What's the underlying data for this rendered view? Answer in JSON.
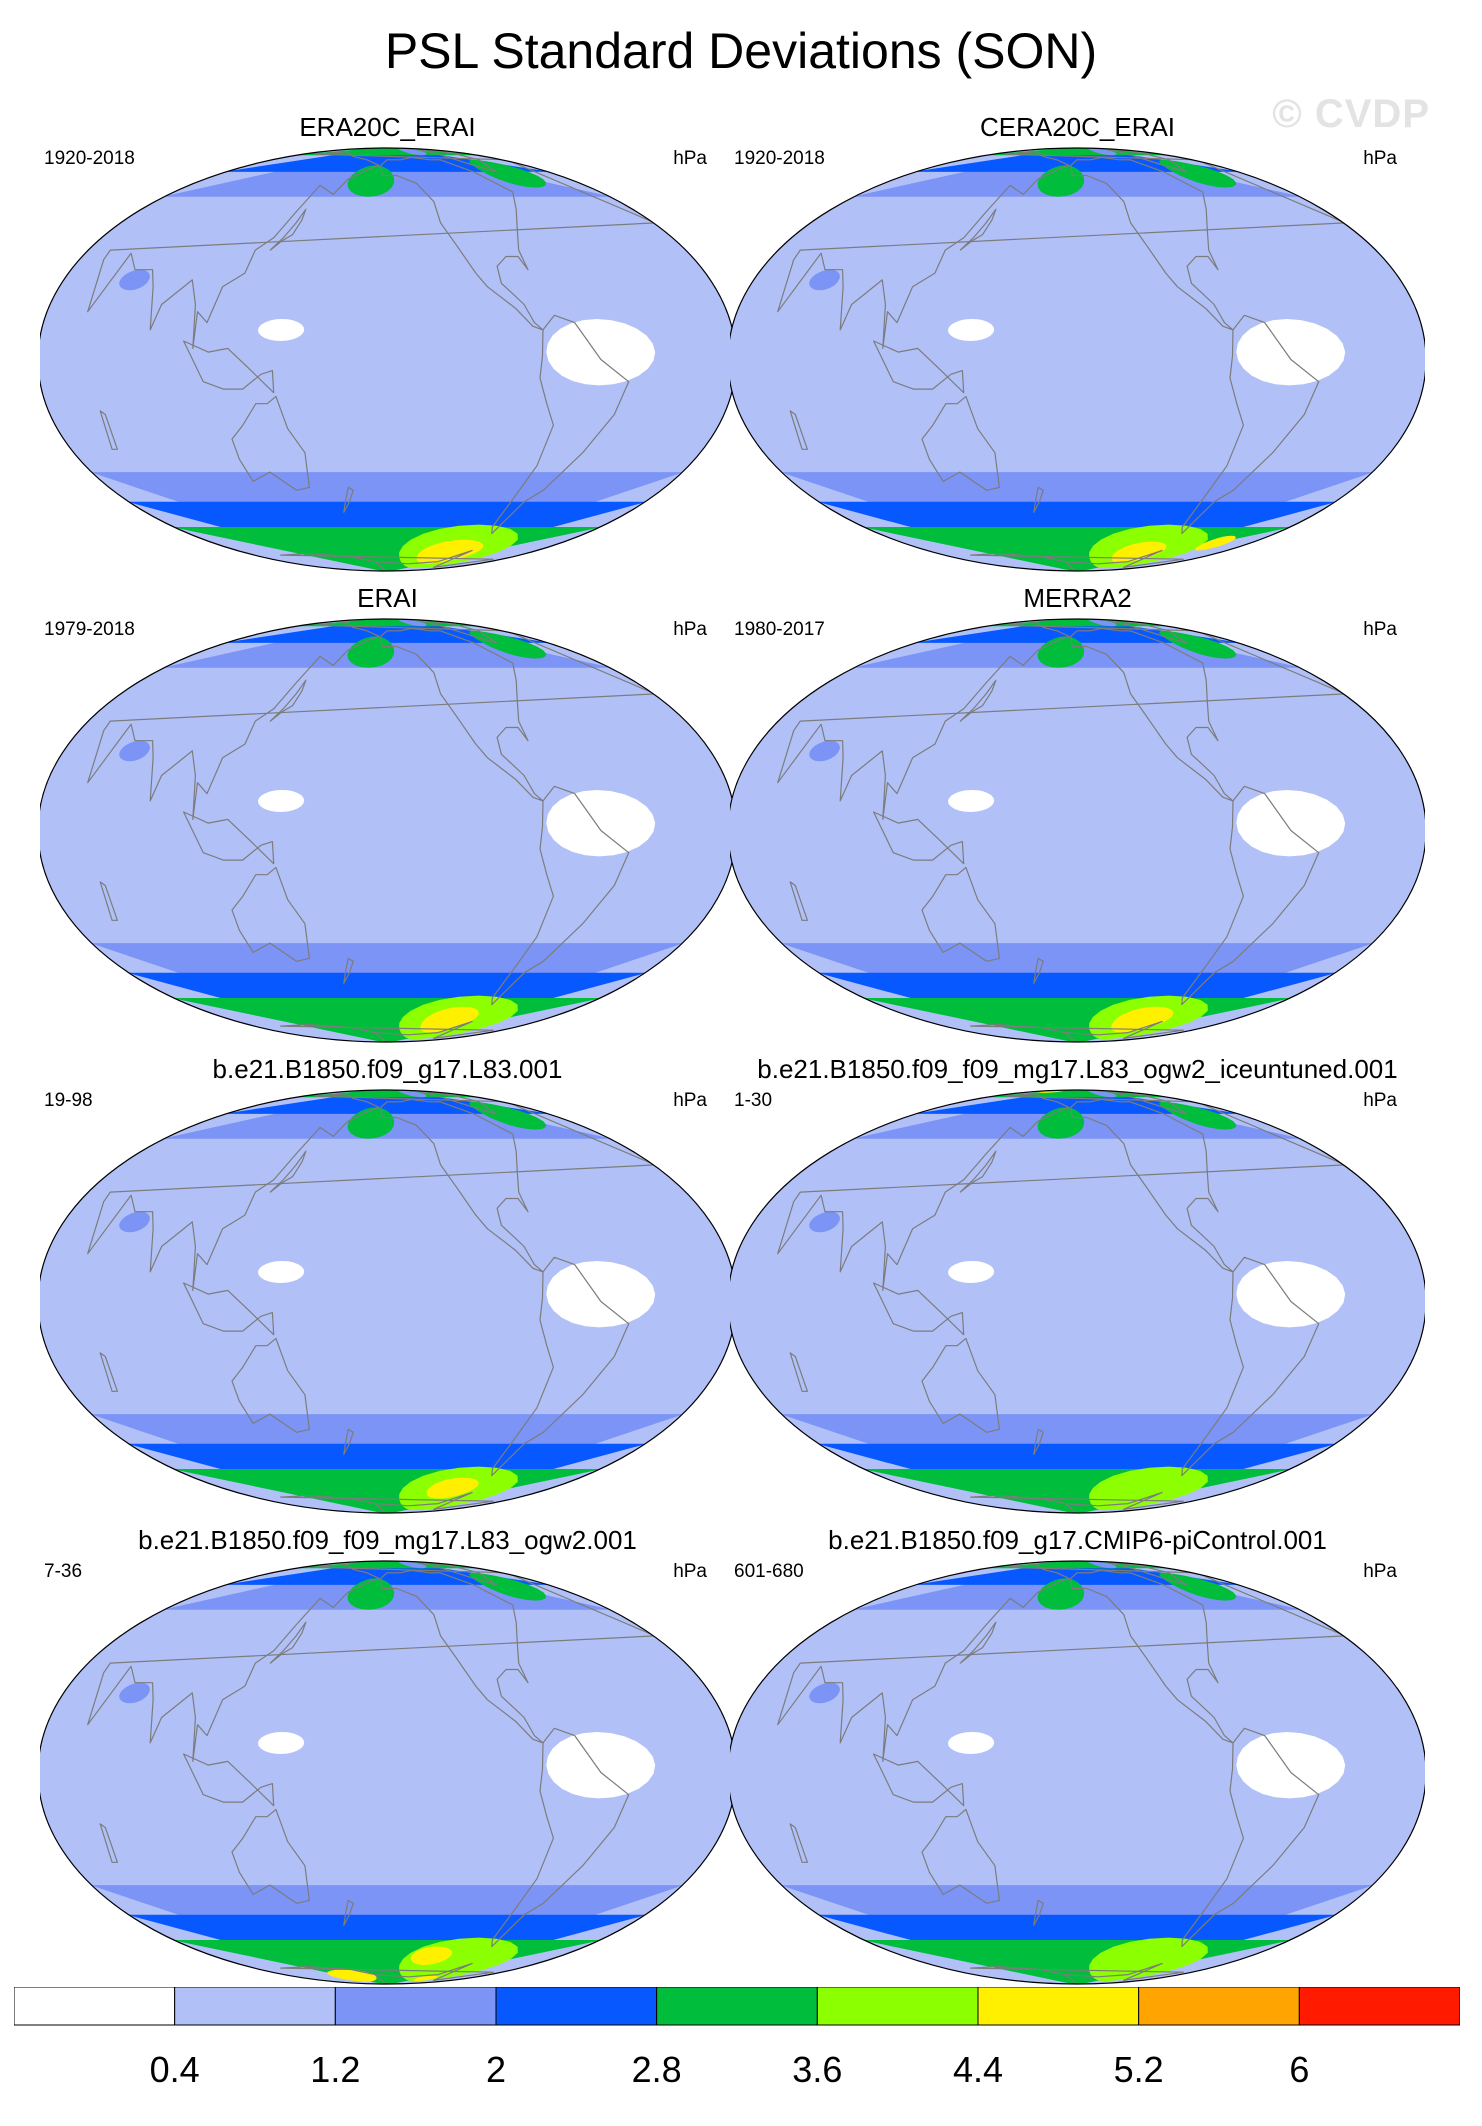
{
  "title": "PSL Standard Deviations (SON)",
  "watermark": "© CVDP",
  "units": "hPa",
  "panels": [
    {
      "title": "ERA20C_ERAI",
      "period": "1920-2018",
      "blobs": [
        {
          "color": "#ffa400",
          "lon": -80,
          "lat": -64,
          "rx": 18,
          "ry": 4
        },
        {
          "color": "#fff000",
          "lon": -85,
          "lat": -66,
          "rx": 35,
          "ry": 8
        }
      ]
    },
    {
      "title": "CERA20C_ERAI",
      "period": "1920-2018",
      "blobs": [
        {
          "color": "#ffa400",
          "lon": -82,
          "lat": -67,
          "rx": 12,
          "ry": 3
        },
        {
          "color": "#fff000",
          "lon": -85,
          "lat": -66,
          "rx": 28,
          "ry": 7
        },
        {
          "color": "#fff000",
          "lon": -18,
          "lat": -60,
          "rx": 12,
          "ry": 4
        }
      ]
    },
    {
      "title": "ERAI",
      "period": "1979-2018",
      "blobs": [
        {
          "color": "#fff000",
          "lon": -90,
          "lat": -64,
          "rx": 28,
          "ry": 8
        }
      ]
    },
    {
      "title": "MERRA2",
      "period": "1980-2017",
      "blobs": [
        {
          "color": "#ffa400",
          "lon": -85,
          "lat": -64,
          "rx": 10,
          "ry": 3
        },
        {
          "color": "#fff000",
          "lon": -87,
          "lat": -64,
          "rx": 30,
          "ry": 8
        }
      ]
    },
    {
      "title": "b.e21.B1850.f09_g17.L83.001",
      "period": "19-98",
      "blobs": [
        {
          "color": "#fff000",
          "lon": -90,
          "lat": -62,
          "rx": 25,
          "ry": 6
        }
      ]
    },
    {
      "title": "b.e21.B1850.f09_f09_mg17.L83_ogw2_iceuntuned.001",
      "period": "1-30",
      "blobs": [
        {
          "color": "#ffa400",
          "lon": 110,
          "lat": 84,
          "rx": 22,
          "ry": 2
        },
        {
          "color": "#fff000",
          "lon": 110,
          "lat": 83,
          "rx": 38,
          "ry": 4
        }
      ]
    },
    {
      "title": "b.e21.B1850.f09_f09_mg17.L83_ogw2.001",
      "period": "7-36",
      "blobs": [
        {
          "color": "#fff000",
          "lon": 140,
          "lat": -74,
          "rx": 40,
          "ry": 6
        },
        {
          "color": "#fff000",
          "lon": -115,
          "lat": -60,
          "rx": 20,
          "ry": 5
        },
        {
          "color": "#fff000",
          "lon": -80,
          "lat": -76,
          "rx": 20,
          "ry": 3
        }
      ]
    },
    {
      "title": "b.e21.B1850.f09_g17.CMIP6-piControl.001",
      "period": "601-680",
      "blobs": []
    }
  ],
  "colorbar": {
    "colors": [
      "#ffffff",
      "#b1c1f8",
      "#7c94f5",
      "#0858ff",
      "#00be3c",
      "#8cff00",
      "#fff000",
      "#ffa400",
      "#ff1a00"
    ],
    "labels": [
      "0.4",
      "1.2",
      "2",
      "2.8",
      "3.6",
      "4.4",
      "5.2",
      "6"
    ]
  }
}
